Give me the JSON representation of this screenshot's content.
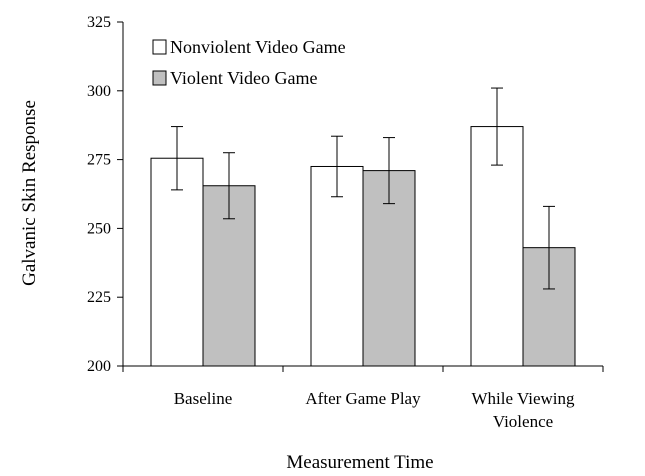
{
  "chart_data": {
    "type": "bar",
    "title": "",
    "xlabel": "Measurement Time",
    "ylabel": "Galvanic Skin Response",
    "ylim": [
      200,
      325
    ],
    "yticks": [
      200,
      225,
      250,
      275,
      300,
      325
    ],
    "grid": false,
    "legend_position": "top-left",
    "categories": [
      [
        "Baseline"
      ],
      [
        "After Game Play"
      ],
      [
        "While Viewing",
        "Violence"
      ]
    ],
    "series": [
      {
        "name": "Nonviolent Video Game",
        "color": "#ffffff",
        "values": [
          275.5,
          272.5,
          287.0
        ],
        "error": [
          11.5,
          11.0,
          14.0
        ]
      },
      {
        "name": "Violent Video Game",
        "color": "#c0c0c0",
        "values": [
          265.5,
          271.0,
          243.0
        ],
        "error": [
          12.0,
          12.0,
          15.0
        ]
      }
    ]
  }
}
